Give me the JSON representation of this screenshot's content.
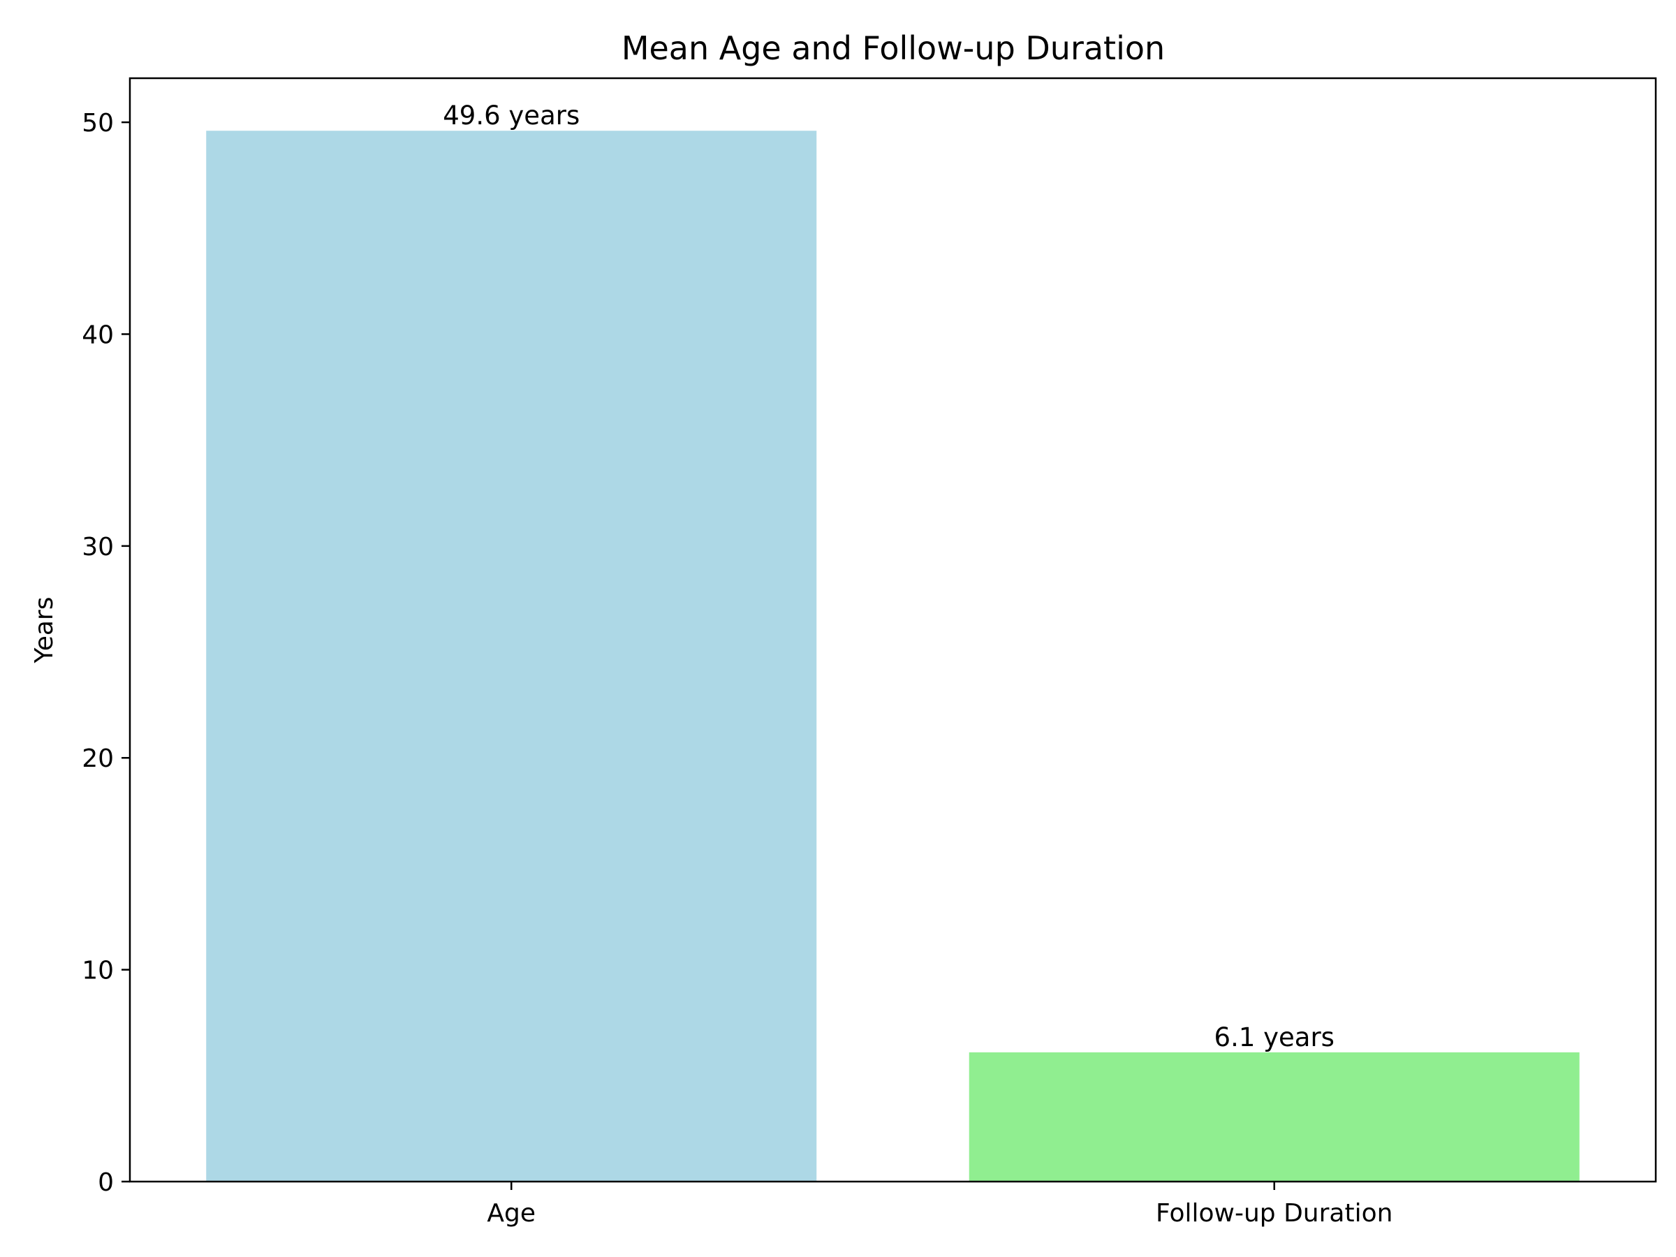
{
  "chart_data": {
    "type": "bar",
    "title": "Mean Age and Follow-up Duration",
    "xlabel": "",
    "ylabel": "Years",
    "categories": [
      "Age",
      "Follow-up Duration"
    ],
    "values": [
      49.6,
      6.1
    ],
    "value_labels": [
      "49.6 years",
      "6.1 years"
    ],
    "bar_colors": [
      "#add8e6",
      "#90ee90"
    ],
    "ylim": [
      0,
      52.08
    ],
    "yticks": [
      0,
      10,
      20,
      30,
      40,
      50
    ],
    "ytick_labels": [
      "0",
      "10",
      "20",
      "30",
      "40",
      "50"
    ],
    "grid": false,
    "legend": "none"
  }
}
